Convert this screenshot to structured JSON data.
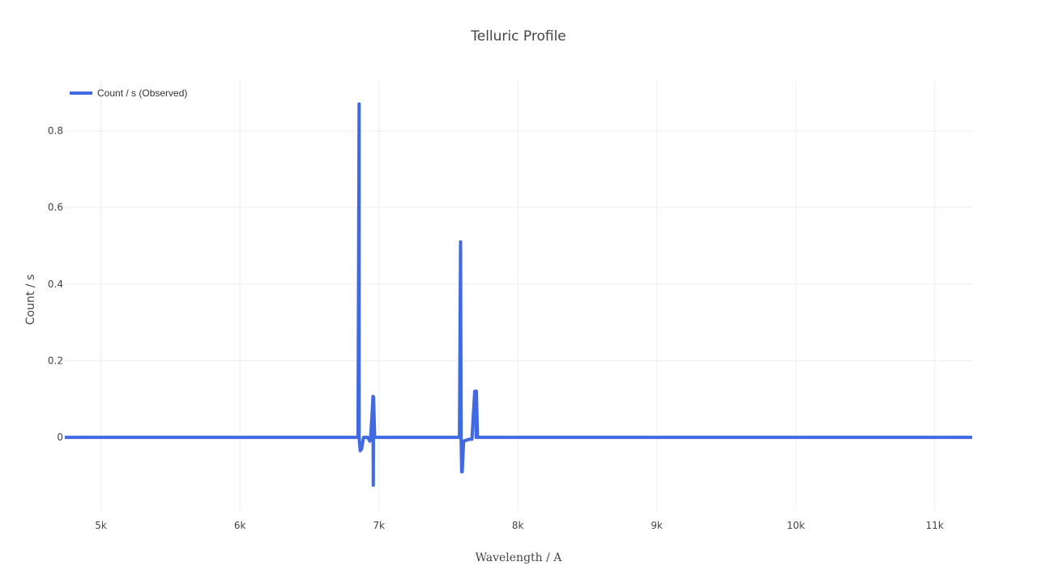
{
  "chart_data": {
    "type": "line",
    "title": "Telluric Profile",
    "xlabel": "Wavelength / A",
    "ylabel": "Count / s",
    "xlim": [
      4740,
      11270
    ],
    "ylim": [
      -0.19,
      0.93
    ],
    "x_ticks": [
      {
        "value": 5000,
        "label": "5k"
      },
      {
        "value": 6000,
        "label": "6k"
      },
      {
        "value": 7000,
        "label": "7k"
      },
      {
        "value": 8000,
        "label": "8k"
      },
      {
        "value": 9000,
        "label": "9k"
      },
      {
        "value": 10000,
        "label": "10k"
      },
      {
        "value": 11000,
        "label": "11k"
      }
    ],
    "y_ticks": [
      {
        "value": 0,
        "label": "0"
      },
      {
        "value": 0.2,
        "label": "0.2"
      },
      {
        "value": 0.4,
        "label": "0.4"
      },
      {
        "value": 0.6,
        "label": "0.6"
      },
      {
        "value": 0.8,
        "label": "0.8"
      }
    ],
    "grid": true,
    "legend_position": "top-left",
    "series": [
      {
        "name": "Count / s (Observed)",
        "color": "#4169e1",
        "x": [
          4740,
          6850,
          6858,
          6858,
          6866,
          6876,
          6890,
          6920,
          6935,
          6940,
          6951,
          6958,
          6960,
          6962,
          6970,
          7580,
          7588,
          7592,
          7596,
          7600,
          7610,
          7650,
          7670,
          7680,
          7690,
          7698,
          7700,
          7702,
          7710,
          11270
        ],
        "y": [
          0,
          0,
          0.87,
          0,
          -0.035,
          -0.03,
          0,
          0,
          -0.01,
          -0.005,
          0.06,
          0.107,
          -0.125,
          0.105,
          0,
          0,
          0.51,
          0,
          -0.09,
          -0.09,
          -0.01,
          -0.005,
          -0.005,
          0.06,
          0.12,
          0.12,
          0,
          0.12,
          0,
          0
        ]
      }
    ]
  }
}
